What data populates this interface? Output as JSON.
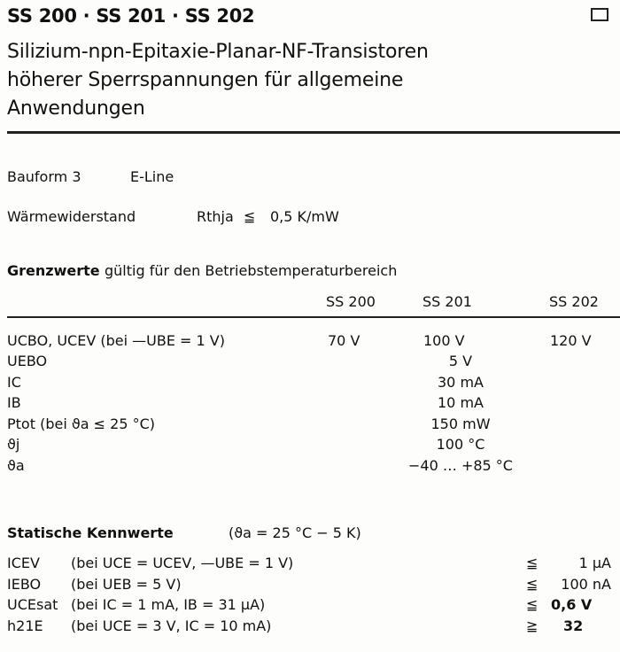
{
  "header": {
    "title": "SS 200 · SS 201 · SS 202",
    "subtitle_lines": [
      "Silizium-npn-Epitaxie-Planar-NF-Transistoren",
      "höherer Sperrspannungen für allgemeine",
      "Anwendungen"
    ]
  },
  "package": {
    "label": "Bauform 3",
    "value": "E-Line"
  },
  "thermal": {
    "label": "Wärmewiderstand",
    "symbol": "Rthja",
    "relation": "≦",
    "value": "0,5 K/mW"
  },
  "limits": {
    "heading": "Grenzwerte",
    "heading_rest": "gültig für den Betriebstemperaturbereich",
    "columns": [
      "SS 200",
      "SS 201",
      "SS 202"
    ],
    "rows": [
      {
        "label": "UCBO, UCEV (bei —UBE = 1 V)",
        "values": [
          "70 V",
          "100 V",
          "120 V"
        ]
      },
      {
        "label": "UEBO",
        "common": "5 V"
      },
      {
        "label": "IC",
        "common": "30 mA"
      },
      {
        "label": "IB",
        "common": "10 mA"
      },
      {
        "label": "Ptot (bei ϑa ≤ 25 °C)",
        "common": "150 mW"
      },
      {
        "label": "ϑj",
        "common": "100 °C"
      },
      {
        "label": "ϑa",
        "common": "−40 … +85 °C"
      }
    ]
  },
  "static": {
    "heading": "Statische Kennwerte",
    "condition": "(ϑa = 25 °C − 5 K)",
    "rows": [
      {
        "symbol": "ICEV",
        "condition": "(bei UCE = UCEV, —UBE = 1 V)",
        "relation": "≦",
        "value": "1 µA"
      },
      {
        "symbol": "IEBO",
        "condition": "(bei UEB = 5 V)",
        "relation": "≦",
        "value": "100 nA"
      },
      {
        "symbol": "UCEsat",
        "condition": "(bei IC = 1 mA, IB = 31 µA)",
        "relation": "≦",
        "value": "0,6 V"
      },
      {
        "symbol": "h21E",
        "condition": "(bei UCE = 3 V, IC = 10 mA)",
        "relation": "≧",
        "value": "32"
      }
    ]
  },
  "icons": {
    "corner": "square-marker-icon"
  }
}
